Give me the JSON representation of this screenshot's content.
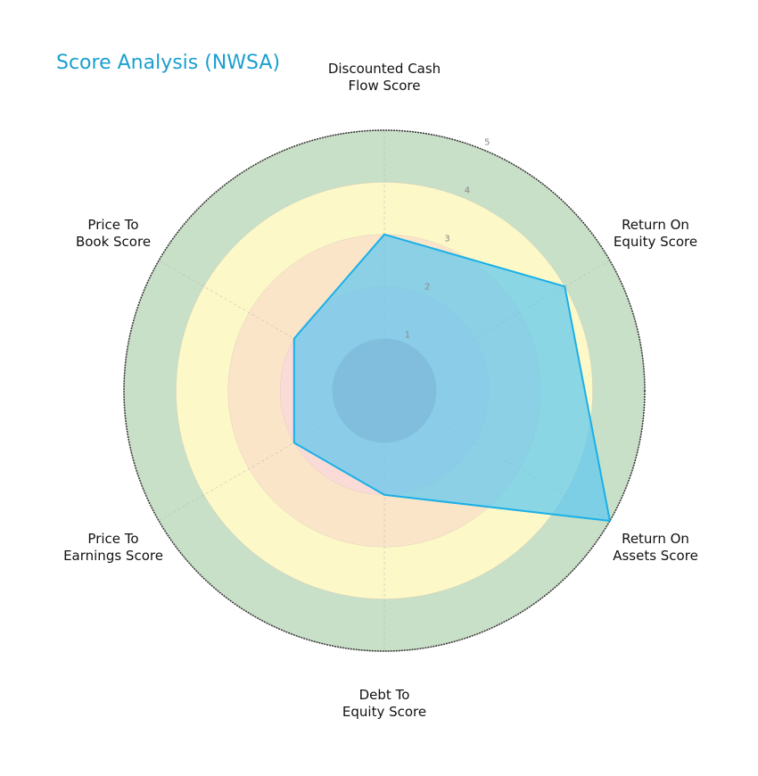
{
  "chart_data": {
    "type": "radar",
    "title": "Score Analysis (NWSA)",
    "categories": [
      "Discounted Cash Flow Score",
      "Return On Equity Score",
      "Return On Assets Score",
      "Debt To Equity Score",
      "Price To Earnings Score",
      "Price To Book Score"
    ],
    "series": [
      {
        "name": "NWSA",
        "values": [
          3,
          4,
          5,
          2,
          2,
          2
        ]
      }
    ],
    "rlim": [
      0,
      5
    ],
    "rticks": [
      1,
      2,
      3,
      4,
      5
    ],
    "grid": true,
    "band_colors": [
      "#d9a9b3",
      "#fadbd8",
      "#fae5c8",
      "#fcf8c8",
      "#c8dfc8"
    ],
    "fill_color": "#5bc8ef",
    "line_color": "#1ab0e8",
    "title_color": "#1a9fd0"
  },
  "labels": {
    "title": "Score Analysis (NWSA)",
    "axes": [
      {
        "line1": "Discounted Cash",
        "line2": "Flow Score"
      },
      {
        "line1": "Return On",
        "line2": "Equity Score"
      },
      {
        "line1": "Return On",
        "line2": "Assets Score"
      },
      {
        "line1": "Debt To",
        "line2": "Equity Score"
      },
      {
        "line1": "Price To",
        "line2": "Earnings Score"
      },
      {
        "line1": "Price To",
        "line2": "Book Score"
      }
    ],
    "ticks": [
      "1",
      "2",
      "3",
      "4",
      "5"
    ]
  }
}
